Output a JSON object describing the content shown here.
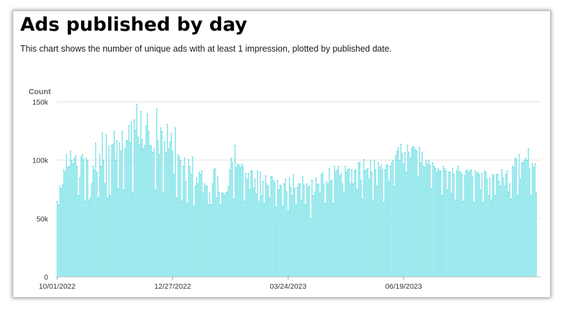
{
  "title": "Ads published by day",
  "subtitle": "This chart shows the number of unique ads with at least 1 impression, plotted by published date.",
  "chart_data": {
    "type": "bar",
    "title": "Ads published by day",
    "ylabel": "Count",
    "xlabel": "",
    "ylim": [
      0,
      150000
    ],
    "yticks": [
      0,
      50000,
      100000,
      150000
    ],
    "ytick_labels": [
      "0",
      "50k",
      "100k",
      "150k"
    ],
    "xtick_labels": [
      "10/01/2022",
      "12/27/2022",
      "03/24/2023",
      "06/19/2023"
    ],
    "x_start": "2022-10-01",
    "x_end": "2023-09-30",
    "x_ticks": [
      "2022-10-01",
      "2022-12-27",
      "2023-03-24",
      "2023-06-19"
    ],
    "bar_color": "#7fe3e8",
    "bar_edge_color": "#3fd3dc",
    "grid": true,
    "values": [
      65000,
      62000,
      78000,
      76000,
      79000,
      92000,
      90000,
      105000,
      94000,
      95000,
      108000,
      100000,
      97000,
      102000,
      104000,
      95000,
      70000,
      85000,
      103000,
      105000,
      101000,
      65000,
      102000,
      100000,
      66000,
      68000,
      80000,
      95000,
      92000,
      115000,
      90000,
      68000,
      105000,
      95000,
      124000,
      100000,
      80000,
      122000,
      68000,
      112000,
      70000,
      113000,
      114000,
      125000,
      100000,
      117000,
      76000,
      115000,
      108000,
      125000,
      75000,
      110000,
      117000,
      117000,
      130000,
      115000,
      133000,
      73000,
      135000,
      126000,
      148000,
      120000,
      114000,
      142000,
      118000,
      110000,
      113000,
      130000,
      140000,
      125000,
      113000,
      112000,
      107000,
      110000,
      75000,
      144000,
      117000,
      105000,
      128000,
      125000,
      72000,
      116000,
      107000,
      131000,
      110000,
      116000,
      123000,
      108000,
      88000,
      128000,
      68000,
      105000,
      103000,
      100000,
      65000,
      95000,
      102000,
      82000,
      63000,
      101000,
      95000,
      88000,
      103000,
      61000,
      78000,
      85000,
      80000,
      90000,
      88000,
      91000,
      72000,
      80000,
      78000,
      78000,
      62000,
      72000,
      62000,
      80000,
      92000,
      93000,
      68000,
      86000,
      73000,
      62000,
      72000,
      72000,
      70000,
      72000,
      73000,
      78000,
      92000,
      102000,
      98000,
      67000,
      113000,
      94000,
      97000,
      96000,
      94000,
      97000,
      95000,
      65000,
      89000,
      84000,
      89000,
      75000,
      91000,
      91000,
      76000,
      84000,
      71000,
      91000,
      65000,
      90000,
      70000,
      82000,
      63000,
      87000,
      80000,
      78000,
      68000,
      86000,
      86000,
      83000,
      81000,
      60000,
      83000,
      75000,
      79000,
      78000,
      61000,
      80000,
      84000,
      73000,
      57000,
      85000,
      77000,
      70000,
      88000,
      76000,
      62000,
      77000,
      80000,
      80000,
      66000,
      86000,
      79000,
      62000,
      80000,
      77000,
      78000,
      50000,
      83000,
      70000,
      73000,
      85000,
      79000,
      80000,
      72000,
      88000,
      90000,
      80000,
      63000,
      82000,
      80000,
      93000,
      82000,
      83000,
      63000,
      95000,
      90000,
      92000,
      95000,
      87000,
      89000,
      80000,
      72000,
      95000,
      90000,
      92000,
      93000,
      80000,
      92000,
      80000,
      91000,
      92000,
      75000,
      98000,
      98000,
      83000,
      67000,
      101000,
      91000,
      92000,
      93000,
      84000,
      100000,
      90000,
      66000,
      100000,
      92000,
      78000,
      98000,
      94000,
      96000,
      92000,
      64000,
      92000,
      96000,
      96000,
      82000,
      95000,
      98000,
      100000,
      78000,
      104000,
      108000,
      111000,
      100000,
      114000,
      106000,
      97000,
      107000,
      90000,
      113000,
      107000,
      102000,
      110000,
      112000,
      111000,
      109000,
      108000,
      86000,
      111000,
      98000,
      107000,
      95000,
      94000,
      100000,
      97000,
      100000,
      96000,
      76000,
      98000,
      95000,
      93000,
      90000,
      93000,
      91000,
      91000,
      70000,
      95000,
      93000,
      91000,
      75000,
      90000,
      90000,
      72000,
      93000,
      88000,
      66000,
      91000,
      95000,
      90000,
      90000,
      88000,
      65000,
      87000,
      91000,
      92000,
      90000,
      91000,
      92000,
      86000,
      64000,
      91000,
      89000,
      90000,
      88000,
      75000,
      89000,
      64000,
      91000,
      90000,
      84000,
      70000,
      85000,
      66000,
      88000,
      87000,
      70000,
      88000,
      88000,
      82000,
      78000,
      92000,
      85000,
      78000,
      88000,
      91000,
      73000,
      80000,
      67000,
      95000,
      94000,
      102000,
      101000,
      70000,
      105000,
      84000,
      98000,
      98000,
      100000,
      102000,
      100000,
      110000,
      93000,
      70000,
      97000,
      94000,
      97000,
      72000
    ]
  }
}
